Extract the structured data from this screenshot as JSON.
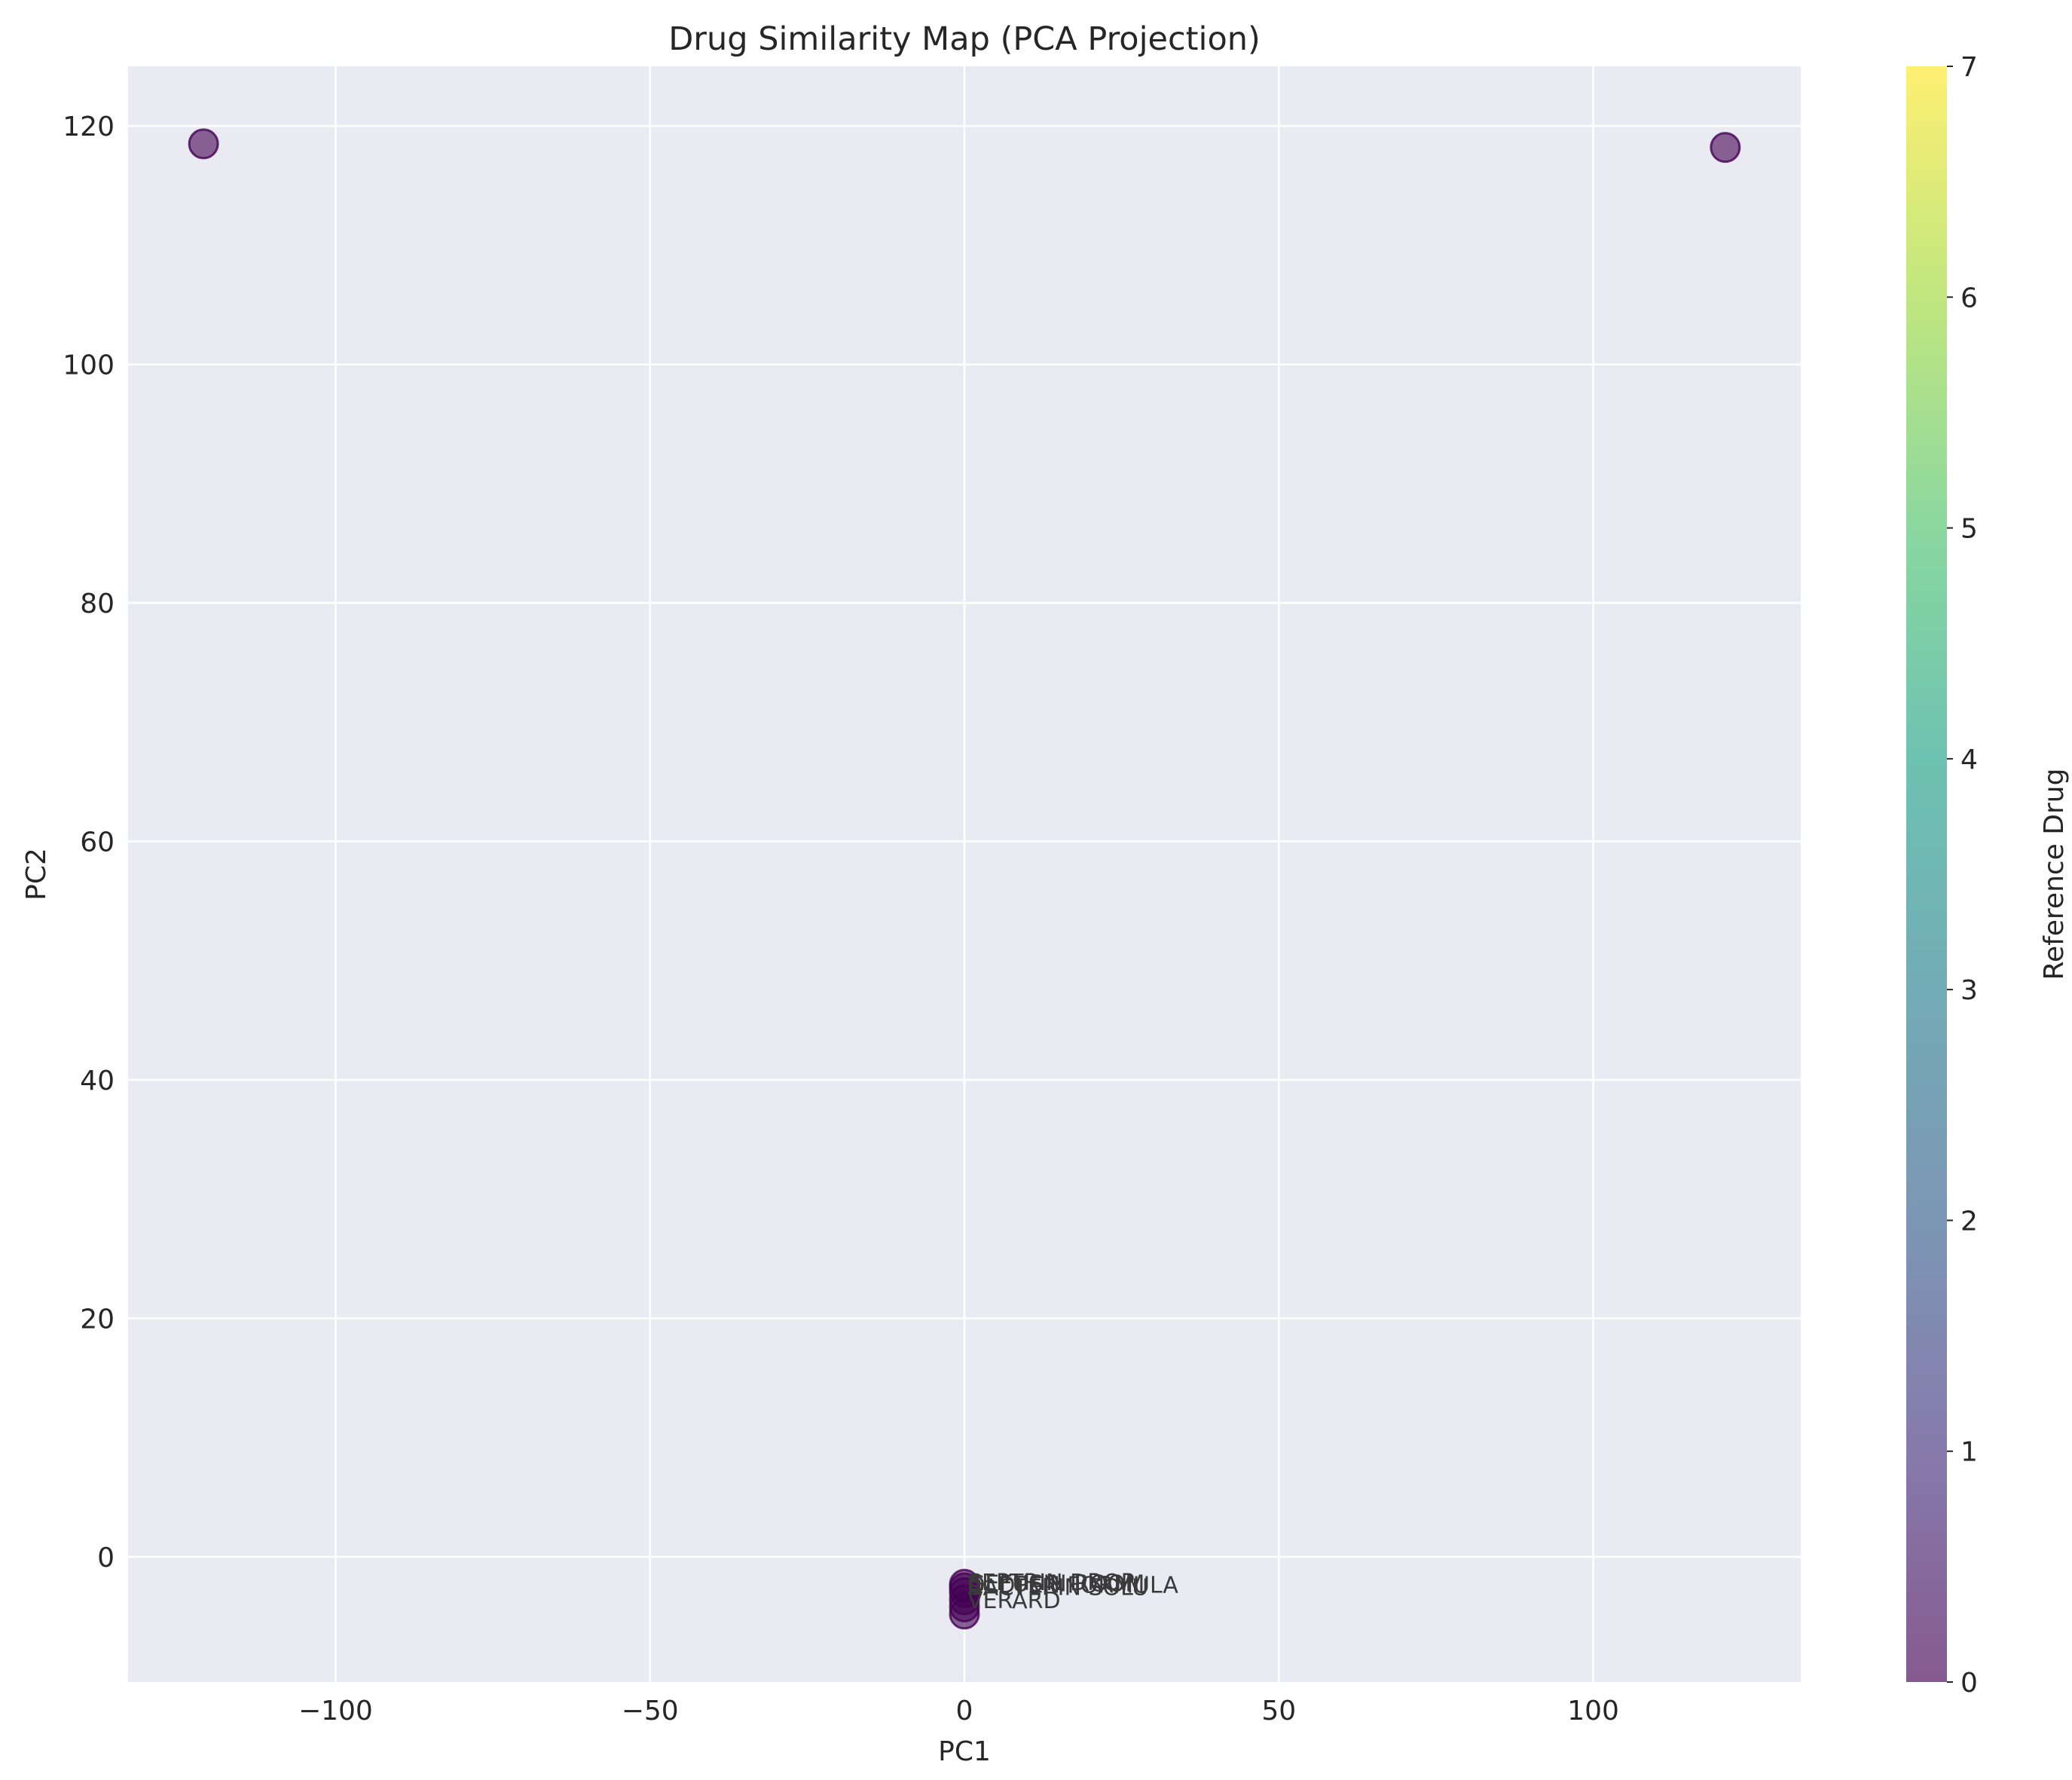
{
  "chart_data": {
    "type": "scatter",
    "title": "Drug Similarity Map (PCA Projection)",
    "xlabel": "PC1",
    "ylabel": "PC2",
    "xlim": [
      -133,
      133
    ],
    "ylim": [
      -10.5,
      125
    ],
    "xticks": [
      -100,
      -50,
      0,
      50,
      100
    ],
    "xtick_labels": [
      "−100",
      "−50",
      "0",
      "50",
      "100"
    ],
    "yticks": [
      0,
      20,
      40,
      60,
      80,
      100,
      120
    ],
    "ytick_labels": [
      "0",
      "20",
      "40",
      "60",
      "80",
      "100",
      "120"
    ],
    "grid": true,
    "colorbar": {
      "label": "Reference Drug",
      "min": 0,
      "max": 7,
      "ticks": [
        0,
        1,
        2,
        3,
        4,
        5,
        6,
        7
      ],
      "tick_labels": [
        "0",
        "1",
        "2",
        "3",
        "4",
        "5",
        "6",
        "7"
      ],
      "colormap": "viridis"
    },
    "points": [
      {
        "x": -121,
        "y": 118.5,
        "c": 0
      },
      {
        "x": 121,
        "y": 118.2,
        "c": 0
      },
      {
        "x": 0,
        "y": -4.8,
        "c": 0
      },
      {
        "x": 0,
        "y": -4.2,
        "c": 0
      },
      {
        "x": 0,
        "y": -3.6,
        "c": 0
      },
      {
        "x": 0,
        "y": -3.0,
        "c": 0
      },
      {
        "x": 0,
        "y": -2.6,
        "c": 0
      },
      {
        "x": 0,
        "y": -2.3,
        "c": 0
      }
    ],
    "annotations": [
      {
        "text": "GEFUSIN ROOM",
        "x": 0,
        "y": -2.2
      },
      {
        "text": "OLDPEN FORMULA",
        "x": 0,
        "y": -2.3
      },
      {
        "text": "BACTERIN SOLU",
        "x": 0,
        "y": -2.5
      },
      {
        "text": "SEPTRIN DROP",
        "x": 0,
        "y": -2.1
      },
      {
        "text": "VERARD",
        "x": 0,
        "y": -3.6
      }
    ]
  },
  "colors": {
    "axes_bg": "#eaeaf2",
    "grid": "#ffffff",
    "text": "#262626",
    "point_fill": "#440154",
    "point_alpha": 0.6
  }
}
